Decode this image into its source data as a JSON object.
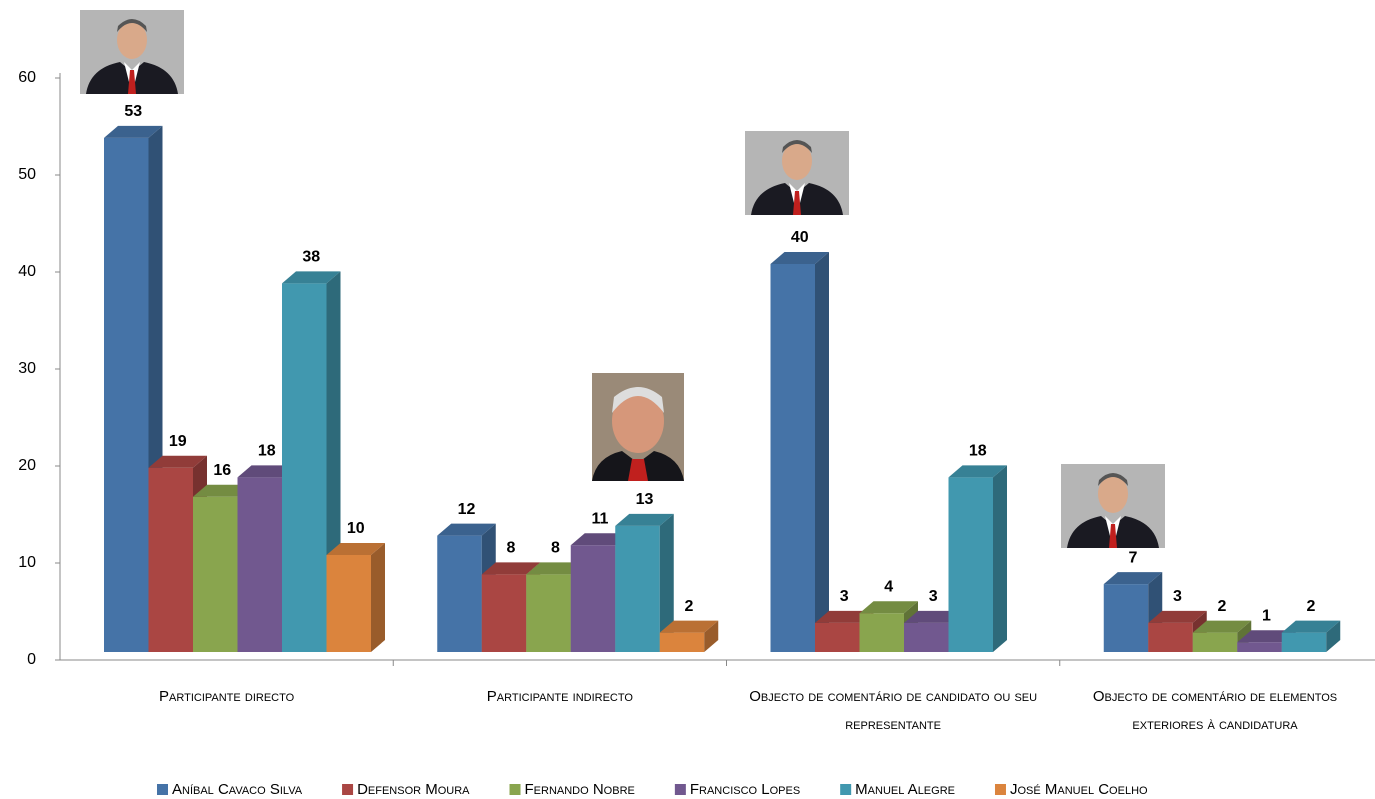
{
  "chart_data": {
    "type": "bar3d",
    "categories": [
      "Participante directo",
      "Participante indirecto",
      "Objecto de comentário de candidato ou seu representante",
      "Objecto de comentário de elementos exteriores à candidatura"
    ],
    "series": [
      {
        "name": "Aníbal Cavaco Silva",
        "color": "#4573a7",
        "values": [
          53,
          12,
          40,
          7
        ]
      },
      {
        "name": "Defensor Moura",
        "color": "#aa4643",
        "values": [
          19,
          8,
          3,
          3
        ]
      },
      {
        "name": "Fernando Nobre",
        "color": "#89a54e",
        "values": [
          16,
          8,
          4,
          2
        ]
      },
      {
        "name": "Francisco Lopes",
        "color": "#71588f",
        "values": [
          18,
          11,
          3,
          1
        ]
      },
      {
        "name": "Manuel Alegre",
        "color": "#4198af",
        "values": [
          38,
          13,
          18,
          2
        ]
      },
      {
        "name": "José Manuel Coelho",
        "color": "#db843d",
        "values": [
          10,
          2,
          null,
          null
        ]
      }
    ],
    "ylim": [
      0,
      60
    ],
    "yticks": [
      0,
      10,
      20,
      30,
      40,
      50,
      60
    ],
    "grid": false,
    "legend": "bottom"
  }
}
